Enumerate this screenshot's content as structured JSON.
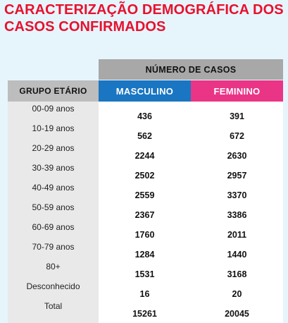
{
  "title": {
    "line1": "CARACTERIZAÇÃO DEMOGRÁFICA DOS",
    "line2": "CASOS CONFIRMADOS"
  },
  "table": {
    "header_group": "NÚMERO DE CASOS",
    "col_age": "GRUPO ETÁRIO",
    "col_masc": "MASCULINO",
    "col_fem": "FEMININO",
    "rows": [
      {
        "age": "00-09 anos",
        "masc": "436",
        "fem": "391"
      },
      {
        "age": "10-19 anos",
        "masc": "562",
        "fem": "672"
      },
      {
        "age": "20-29 anos",
        "masc": "2244",
        "fem": "2630"
      },
      {
        "age": "30-39 anos",
        "masc": "2502",
        "fem": "2957"
      },
      {
        "age": "40-49 anos",
        "masc": "2559",
        "fem": "3370"
      },
      {
        "age": "50-59 anos",
        "masc": "2367",
        "fem": "3386"
      },
      {
        "age": "60-69 anos",
        "masc": "1760",
        "fem": "2011"
      },
      {
        "age": "70-79 anos",
        "masc": "1284",
        "fem": "1440"
      },
      {
        "age": "80+",
        "masc": "1531",
        "fem": "3168"
      },
      {
        "age": "Desconhecido",
        "masc": "16",
        "fem": "20"
      },
      {
        "age": "Total",
        "masc": "15261",
        "fem": "20045"
      }
    ]
  },
  "colors": {
    "title": "#e8112d",
    "masculino": "#1a76c2",
    "feminino": "#ea3587",
    "header_gray": "#a8a8a8",
    "background": "#e6f5fc"
  }
}
